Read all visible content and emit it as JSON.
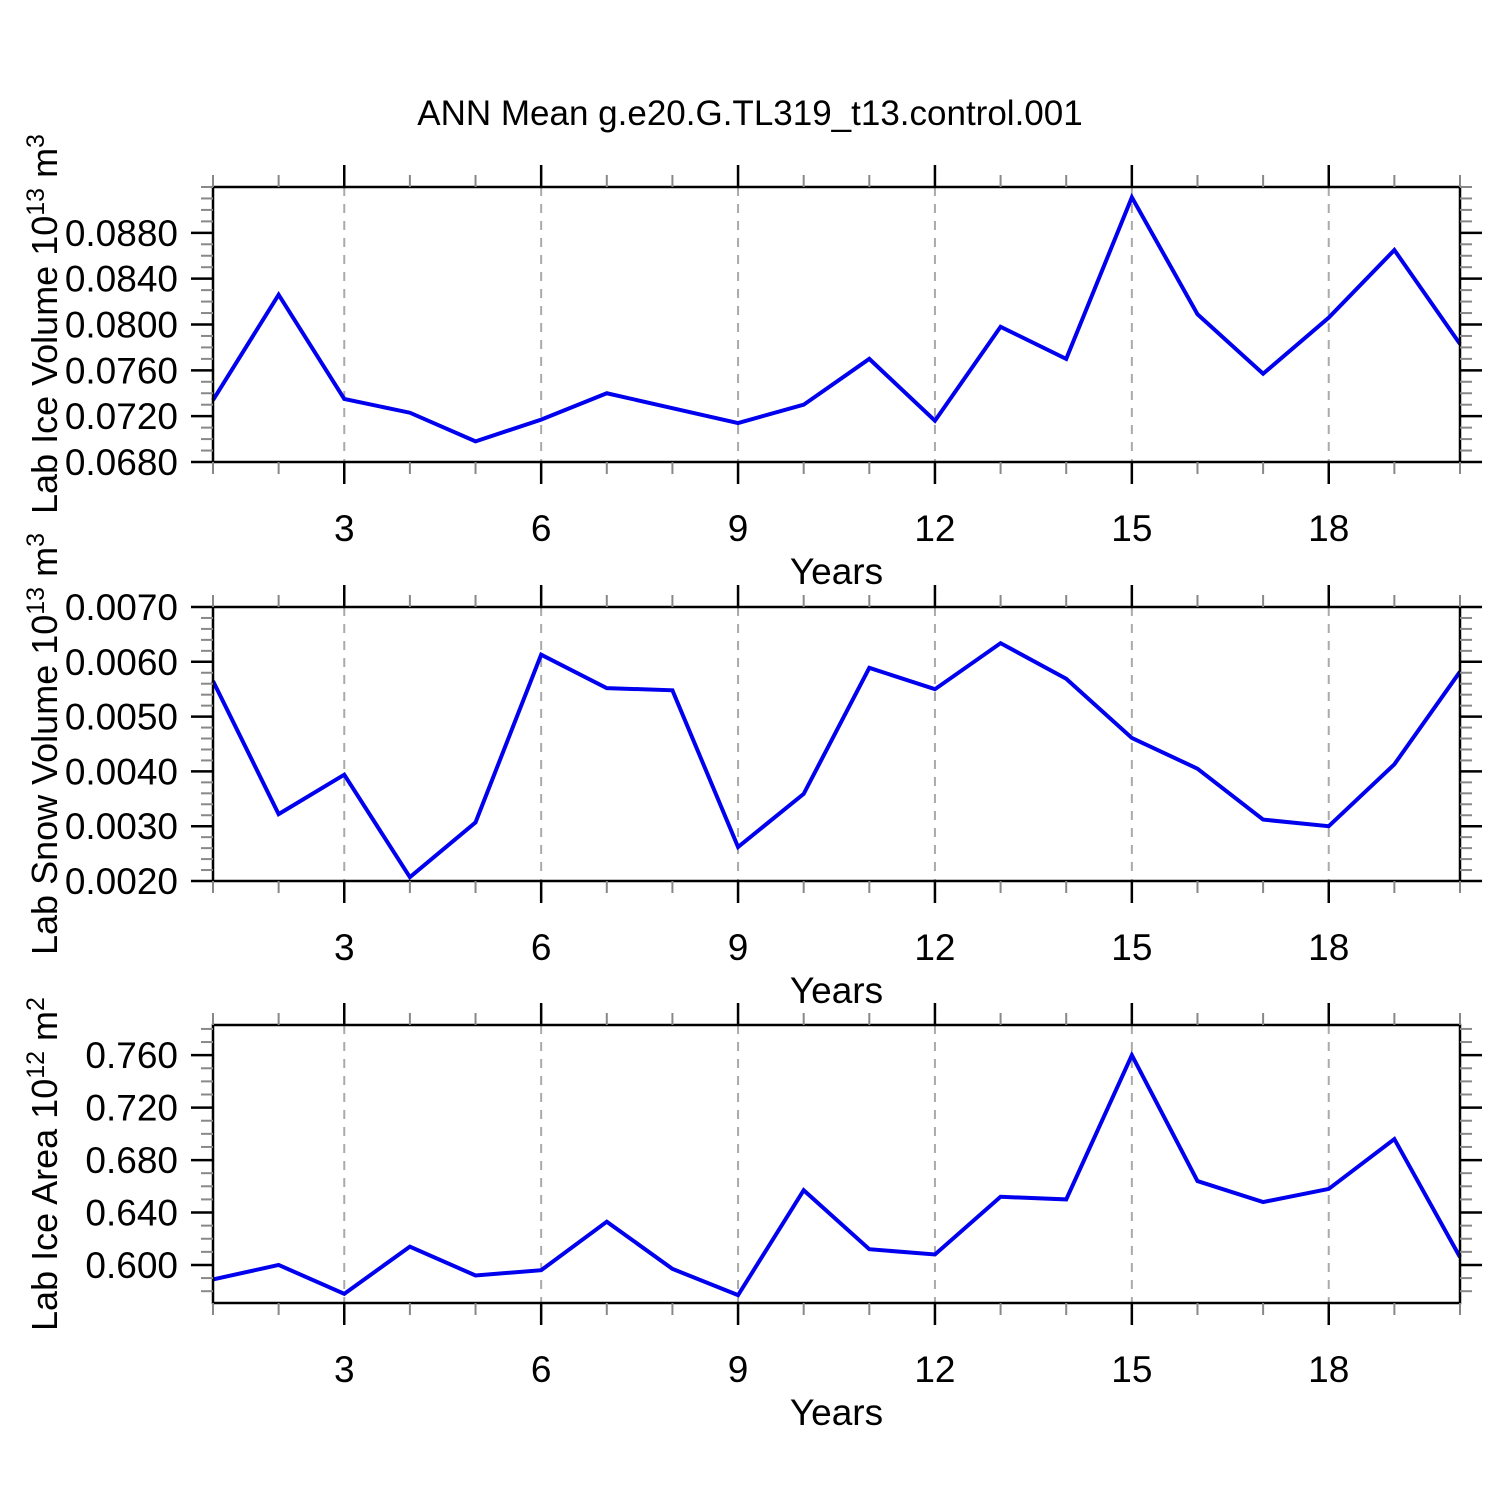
{
  "title": "ANN Mean g.e20.G.TL319_t13.control.001",
  "x_axis_label": "Years",
  "colors": {
    "line": "#0000ee",
    "grid": "#aaaaaa",
    "axis": "#000000",
    "minor_tick": "#888888"
  },
  "chart_data": [
    {
      "type": "line",
      "ylabel_parts": {
        "prefix": "Lab Ice Volume 10",
        "exp1": "13",
        "unit": " m",
        "exp2": "3"
      },
      "x": [
        1,
        2,
        3,
        4,
        5,
        6,
        7,
        8,
        9,
        10,
        11,
        12,
        13,
        14,
        15,
        16,
        17,
        18,
        19,
        20
      ],
      "values": [
        0.0734,
        0.0826,
        0.0735,
        0.0723,
        0.0698,
        0.0717,
        0.074,
        0.0727,
        0.0714,
        0.073,
        0.077,
        0.0716,
        0.0798,
        0.077,
        0.0911,
        0.0809,
        0.0757,
        0.0806,
        0.0865,
        0.0783
      ],
      "xlim": [
        1,
        20
      ],
      "ylim": [
        0.068,
        0.092
      ],
      "xticks": [
        3,
        6,
        9,
        12,
        15,
        18
      ],
      "xtick_labels": [
        "3",
        "6",
        "9",
        "12",
        "15",
        "18"
      ],
      "xminor_step": 1,
      "ytick_values": [
        0.088,
        0.084,
        0.08,
        0.076,
        0.072,
        0.068
      ],
      "ytick_labels": [
        "0.0880",
        "0.0840",
        "0.0800",
        "0.0760",
        "0.0720",
        "0.0680"
      ],
      "yminor_step": 0.001,
      "grid_x": [
        3,
        6,
        9,
        12,
        15,
        18
      ]
    },
    {
      "type": "line",
      "ylabel_parts": {
        "prefix": "Lab Snow Volume 10",
        "exp1": "13",
        "unit": " m",
        "exp2": "3"
      },
      "x": [
        1,
        2,
        3,
        4,
        5,
        6,
        7,
        8,
        9,
        10,
        11,
        12,
        13,
        14,
        15,
        16,
        17,
        18,
        19,
        20
      ],
      "values": [
        0.00565,
        0.00322,
        0.00394,
        0.00207,
        0.00307,
        0.00613,
        0.00552,
        0.00548,
        0.00262,
        0.00359,
        0.00589,
        0.0055,
        0.00634,
        0.00569,
        0.00461,
        0.00405,
        0.00312,
        0.003,
        0.00413,
        0.00582
      ],
      "xlim": [
        1,
        20
      ],
      "ylim": [
        0.002,
        0.007
      ],
      "xticks": [
        3,
        6,
        9,
        12,
        15,
        18
      ],
      "xtick_labels": [
        "3",
        "6",
        "9",
        "12",
        "15",
        "18"
      ],
      "xminor_step": 1,
      "ytick_values": [
        0.007,
        0.006,
        0.005,
        0.004,
        0.003,
        0.002
      ],
      "ytick_labels": [
        "0.0070",
        "0.0060",
        "0.0050",
        "0.0040",
        "0.0030",
        "0.0020"
      ],
      "yminor_step": 0.0002,
      "grid_x": [
        3,
        6,
        9,
        12,
        15,
        18
      ]
    },
    {
      "type": "line",
      "ylabel_parts": {
        "prefix": "Lab Ice Area 10",
        "exp1": "12",
        "unit": " m",
        "exp2": "2"
      },
      "x": [
        1,
        2,
        3,
        4,
        5,
        6,
        7,
        8,
        9,
        10,
        11,
        12,
        13,
        14,
        15,
        16,
        17,
        18,
        19,
        20
      ],
      "values": [
        0.589,
        0.6,
        0.578,
        0.614,
        0.592,
        0.596,
        0.633,
        0.597,
        0.577,
        0.657,
        0.612,
        0.608,
        0.652,
        0.65,
        0.76,
        0.664,
        0.648,
        0.658,
        0.696,
        0.606
      ],
      "xlim": [
        1,
        20
      ],
      "ylim": [
        0.571,
        0.783
      ],
      "xticks": [
        3,
        6,
        9,
        12,
        15,
        18
      ],
      "xtick_labels": [
        "3",
        "6",
        "9",
        "12",
        "15",
        "18"
      ],
      "xminor_step": 1,
      "ytick_values": [
        0.76,
        0.72,
        0.68,
        0.64,
        0.6
      ],
      "ytick_labels": [
        "0.760",
        "0.720",
        "0.680",
        "0.640",
        "0.600"
      ],
      "yminor_step": 0.01,
      "grid_x": [
        3,
        6,
        9,
        12,
        15,
        18
      ]
    }
  ]
}
